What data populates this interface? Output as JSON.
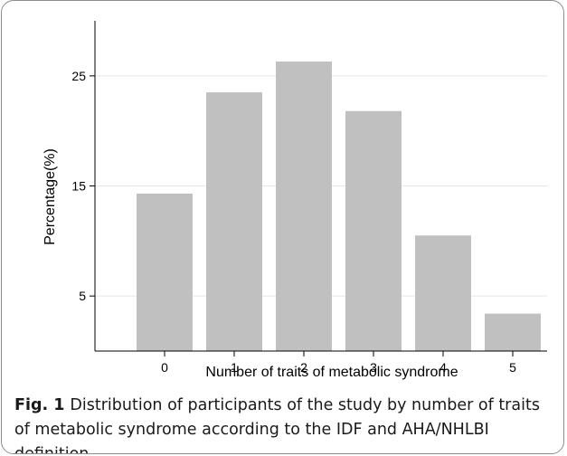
{
  "chart_data": {
    "type": "bar",
    "categories": [
      "0",
      "1",
      "2",
      "3",
      "4",
      "5"
    ],
    "values": [
      14.3,
      23.5,
      26.3,
      21.8,
      10.5,
      3.4
    ],
    "xlabel": "Number of traits of metabolic syndrome",
    "ylabel": "Percentage(%)",
    "ylim": [
      0,
      30
    ],
    "yticks": [
      5,
      15,
      25
    ],
    "grid": true,
    "bar_color": "#c0c0c0",
    "grid_color": "#e6e6e6",
    "axis_color": "#000000"
  },
  "caption": {
    "label": "Fig. 1",
    "text": "Distribution of participants of the study by number of traits of metabolic syndrome according to the IDF and AHA/NHLBI definition"
  }
}
